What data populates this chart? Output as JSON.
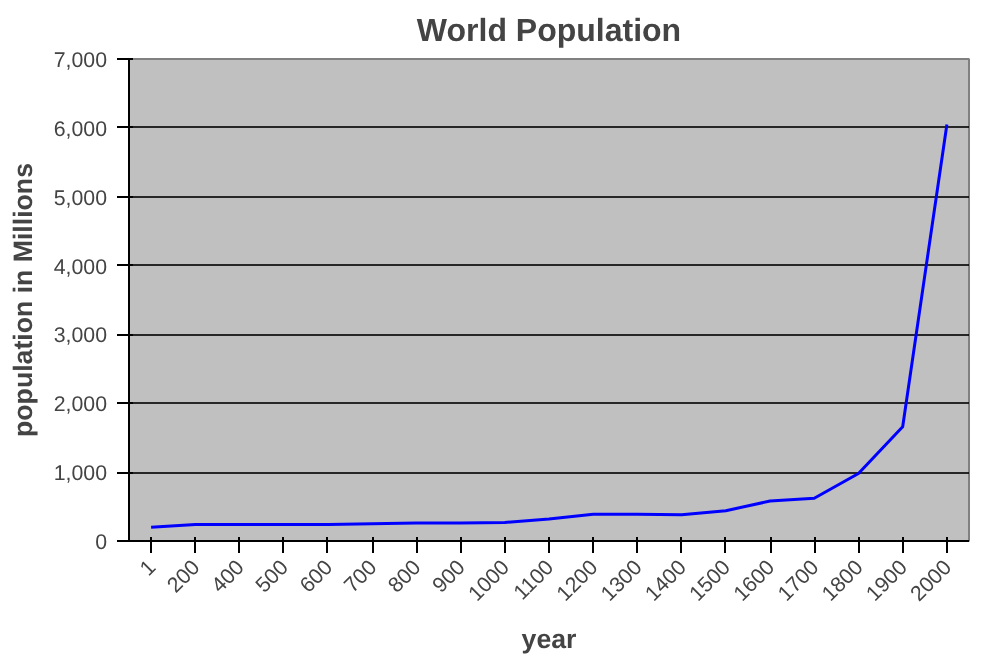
{
  "chart_data": {
    "type": "line",
    "title": "World Population",
    "xlabel": "year",
    "ylabel": "population in Millions",
    "categories": [
      "1",
      "200",
      "400",
      "500",
      "600",
      "700",
      "800",
      "900",
      "1000",
      "1100",
      "1200",
      "1300",
      "1400",
      "1500",
      "1600",
      "1700",
      "1800",
      "1900",
      "2000"
    ],
    "series": [
      {
        "color": "#0000ff",
        "values": [
          200,
          240,
          240,
          240,
          240,
          250,
          260,
          260,
          270,
          320,
          390,
          390,
          380,
          440,
          580,
          620,
          980,
          1660,
          6050
        ]
      }
    ],
    "ylim": [
      0,
      7000
    ],
    "yticks": [
      {
        "value": 0,
        "label": "0"
      },
      {
        "value": 1000,
        "label": "1,000"
      },
      {
        "value": 2000,
        "label": "2,000"
      },
      {
        "value": 3000,
        "label": "3,000"
      },
      {
        "value": 4000,
        "label": "4,000"
      },
      {
        "value": 5000,
        "label": "5,000"
      },
      {
        "value": 6000,
        "label": "6,000"
      },
      {
        "value": 7000,
        "label": "7,000"
      }
    ],
    "grid": "y"
  }
}
